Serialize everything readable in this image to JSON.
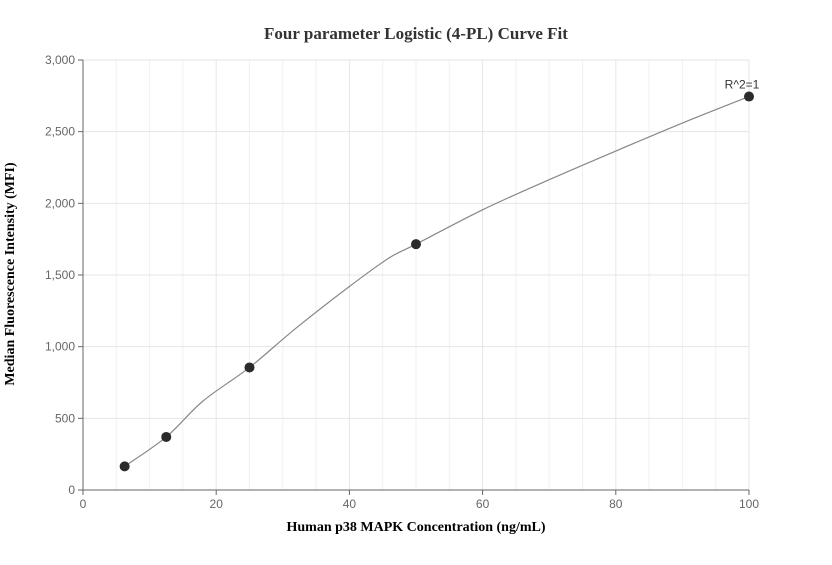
{
  "chart_data": {
    "type": "scatter",
    "title": "Four parameter Logistic (4-PL) Curve Fit",
    "xlabel": "Human p38 MAPK Concentration (ng/mL)",
    "ylabel": "Median Fluorescence Intensity (MFI)",
    "xlim": [
      0,
      100
    ],
    "ylim": [
      0,
      3000
    ],
    "x_ticks": [
      0,
      20,
      40,
      60,
      80,
      100
    ],
    "y_ticks": [
      0,
      500,
      1000,
      1500,
      2000,
      2500,
      3000
    ],
    "x_tick_labels": [
      "0",
      "20",
      "40",
      "60",
      "80",
      "100"
    ],
    "y_tick_labels": [
      "0",
      "500",
      "1,000",
      "1,500",
      "2,000",
      "2,500",
      "3,000"
    ],
    "grid": true,
    "series": [
      {
        "type": "scatter",
        "color": "#2b2b2b",
        "x": [
          6.25,
          12.5,
          25,
          50,
          100
        ],
        "y": [
          165,
          370,
          855,
          1715,
          2745
        ]
      },
      {
        "type": "line",
        "color": "#888888",
        "x": [
          6.25,
          12.5,
          18,
          25,
          32,
          40,
          46,
          50,
          60,
          70,
          80,
          90,
          100
        ],
        "y": [
          165,
          370,
          620,
          855,
          1130,
          1420,
          1620,
          1715,
          1955,
          2165,
          2365,
          2560,
          2745
        ]
      }
    ],
    "annotations": [
      {
        "text": "R^2=1",
        "x": 100,
        "y": 2745
      }
    ]
  }
}
